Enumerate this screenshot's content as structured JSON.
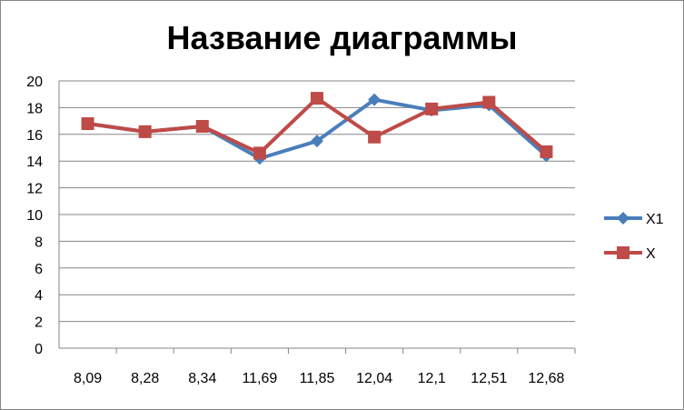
{
  "chart_data": {
    "type": "line",
    "title": "Название диаграммы",
    "categories": [
      "8,09",
      "8,28",
      "8,34",
      "11,69",
      "11,85",
      "12,04",
      "12,1",
      "12,51",
      "12,68"
    ],
    "series": [
      {
        "name": "X1",
        "values": [
          16.8,
          16.2,
          16.6,
          14.2,
          15.5,
          18.6,
          17.8,
          18.2,
          14.4
        ],
        "color": "#4a7ebb",
        "marker": "diamond"
      },
      {
        "name": "X",
        "values": [
          16.8,
          16.2,
          16.6,
          14.6,
          18.7,
          15.8,
          17.9,
          18.4,
          14.7
        ],
        "color": "#be4b48",
        "marker": "square"
      }
    ],
    "ylim": [
      0,
      20
    ],
    "yticks": [
      0,
      2,
      4,
      6,
      8,
      10,
      12,
      14,
      16,
      18,
      20
    ],
    "grid": true,
    "legend": "right"
  }
}
